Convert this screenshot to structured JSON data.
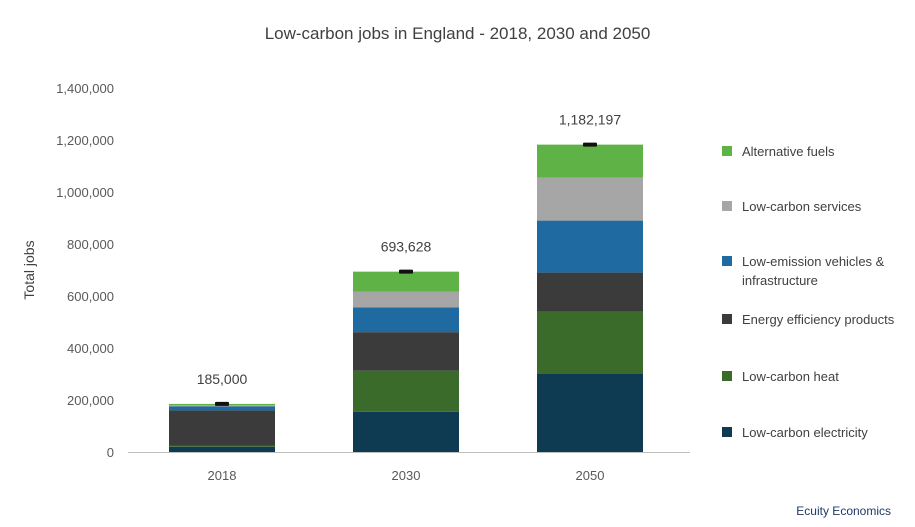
{
  "chart_data": {
    "type": "bar",
    "stacked": true,
    "title": "Low-carbon jobs in England - 2018, 2030 and 2050",
    "ylabel": "Total jobs",
    "xlabel": "",
    "ylim": [
      0,
      1400000
    ],
    "yticks": [
      "0",
      "200,000",
      "400,000",
      "600,000",
      "800,000",
      "1,000,000",
      "1,200,000",
      "1,400,000"
    ],
    "categories": [
      "2018",
      "2030",
      "2050"
    ],
    "totals": [
      185000,
      693628,
      1182197
    ],
    "total_labels": [
      "185,000",
      "693,628",
      "1,182,197"
    ],
    "series": [
      {
        "name": "Low-carbon electricity",
        "color": "#0e3a52",
        "values": [
          20000,
          155000,
          300000
        ]
      },
      {
        "name": "Low-carbon heat",
        "color": "#3a6b2b",
        "values": [
          5000,
          158000,
          240000
        ]
      },
      {
        "name": "Energy efficiency products",
        "color": "#3b3b3b",
        "values": [
          135000,
          148000,
          150000
        ]
      },
      {
        "name": "Low-emission vehicles & infrastructure",
        "color": "#1f6aa0",
        "values": [
          15000,
          95000,
          200000
        ]
      },
      {
        "name": "Low-carbon services",
        "color": "#a6a6a6",
        "values": [
          5000,
          60000,
          165000
        ]
      },
      {
        "name": "Alternative fuels",
        "color": "#5fb346",
        "values": [
          5000,
          77628,
          127197
        ]
      }
    ],
    "legend_order": [
      "Alternative fuels",
      "Low-carbon services",
      "Low-emission vehicles & infrastructure",
      "Energy efficiency products",
      "Low-carbon heat",
      "Low-carbon electricity"
    ],
    "legend_position": "right",
    "grid": false
  },
  "source_note": "Ecuity Economics"
}
